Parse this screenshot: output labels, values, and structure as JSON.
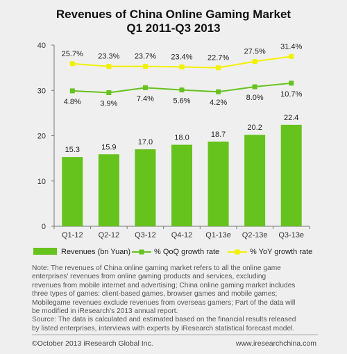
{
  "chart_data": {
    "type": "bar",
    "title_lines": [
      "Revenues of China Online Gaming Market",
      "Q1 2011-Q3 2013"
    ],
    "categories": [
      "Q1-12",
      "Q2-12",
      "Q3-12",
      "Q4-12",
      "Q1-13e",
      "Q2-13e",
      "Q3-13e"
    ],
    "ylim": [
      0,
      40
    ],
    "yticks": [
      0,
      10,
      20,
      30,
      40
    ],
    "series": [
      {
        "name": "Revenues (bn Yuan)",
        "kind": "bar",
        "values": [
          15.3,
          15.9,
          17.0,
          18.0,
          18.7,
          20.2,
          22.4
        ],
        "labels": [
          "15.3",
          "15.9",
          "17.0",
          "18.0",
          "18.7",
          "20.2",
          "22.4"
        ],
        "color": "#66c21d"
      },
      {
        "name": "% QoQ growth rate",
        "kind": "line",
        "values": [
          4.8,
          3.9,
          7.4,
          5.6,
          4.2,
          8.0,
          10.7
        ],
        "labels": [
          "4.8%",
          "3.9%",
          "7.4%",
          "5.6%",
          "4.2%",
          "8.0%",
          "10.7%"
        ],
        "plot_y": [
          29.9,
          29.5,
          30.6,
          30.1,
          29.7,
          30.8,
          31.6
        ],
        "color": "#66c21d"
      },
      {
        "name": "% YoY growth rate",
        "kind": "line",
        "values": [
          25.7,
          23.3,
          23.7,
          23.4,
          22.7,
          27.5,
          31.4
        ],
        "labels": [
          "25.7%",
          "23.3%",
          "23.7%",
          "23.4%",
          "22.7%",
          "27.5%",
          "31.4%"
        ],
        "plot_y": [
          35.9,
          35.3,
          35.3,
          35.2,
          35.0,
          36.4,
          37.5
        ],
        "color": "#f2f200"
      }
    ],
    "grid": false,
    "legend_position": "bottom"
  },
  "note_lines": [
    "Note: The revenues of China online gaming market refers to all the online game",
    "enterprises' revenues from online gaming products and services, excluding",
    "revenues from mobile internet and advertising; China online gaming market includes",
    "three types of games: client-based games, browser games and mobile games;",
    "Mobilegame  revenues exclude revenues from overseas gamers; Part of the data will",
    "be modified in iResearch's 2013 annual report.",
    "Source: The data is calculated and estimated based on the financial results released",
    "by listed enterprises, interviews  with experts by iResearch statistical forecast model."
  ],
  "footer": {
    "left": "©October 2013  iResearch Global  Inc.",
    "right": "www.iresearchchina.com"
  }
}
